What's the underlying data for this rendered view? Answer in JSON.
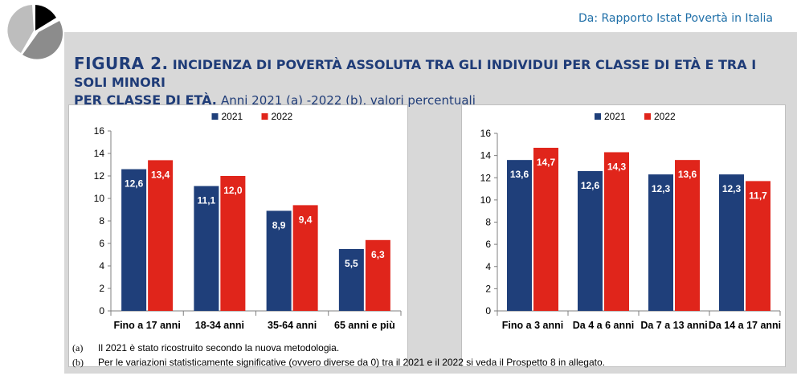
{
  "header": {
    "source": "Da: Rapporto Istat Povertà in Italia",
    "logo_icon": "pie-chart-icon"
  },
  "figure": {
    "label": "FIGURA 2.",
    "title_line1": "INCIDENZA DI POVERTÀ ASSOLUTA TRA  GLI INDIVIDUI PER CLASSE DI ETÀ E TRA I SOLI MINORI",
    "title_line2": "PER CLASSE DI ETÀ.",
    "subtitle": "Anni 2021 (a) -2022 (b), valori percentuali"
  },
  "colors": {
    "series_2021": "#1f3f7a",
    "series_2022": "#e0251b",
    "panel_bg": "#d8d8d8"
  },
  "chart_data": [
    {
      "type": "bar",
      "categories": [
        "Fino a 17 anni",
        "18-34 anni",
        "35-64 anni",
        "65 anni e più"
      ],
      "series": [
        {
          "name": "2021",
          "values": [
            12.6,
            11.1,
            8.9,
            5.5
          ],
          "labels": [
            "12,6",
            "11,1",
            "8,9",
            "5,5"
          ]
        },
        {
          "name": "2022",
          "values": [
            13.4,
            12.0,
            9.4,
            6.3
          ],
          "labels": [
            "13,4",
            "12,0",
            "9,4",
            "6,3"
          ]
        }
      ],
      "ylim": [
        0,
        16
      ],
      "yticks": [
        0,
        2,
        4,
        6,
        8,
        10,
        12,
        14,
        16
      ],
      "legend": "top-center",
      "grid": false
    },
    {
      "type": "bar",
      "categories": [
        "Fino a 3 anni",
        "Da 4 a 6 anni",
        "Da 7 a 13 anni",
        "Da 14 a 17 anni"
      ],
      "series": [
        {
          "name": "2021",
          "values": [
            13.6,
            12.6,
            12.3,
            12.3
          ],
          "labels": [
            "13,6",
            "12,6",
            "12,3",
            "12,3"
          ]
        },
        {
          "name": "2022",
          "values": [
            14.7,
            14.3,
            13.6,
            11.7
          ],
          "labels": [
            "14,7",
            "14,3",
            "13,6",
            "11,7"
          ]
        }
      ],
      "ylim": [
        0,
        16
      ],
      "yticks": [
        0,
        2,
        4,
        6,
        8,
        10,
        12,
        14,
        16
      ],
      "legend": "top-center",
      "grid": false
    }
  ],
  "notes": [
    {
      "key": "(a)",
      "text": "Il 2021 è stato ricostruito secondo la nuova metodologia."
    },
    {
      "key": "(b)",
      "text": "Per le variazioni statisticamente significative (ovvero diverse da 0) tra il 2021 e il 2022 si veda il Prospetto 8 in allegato."
    }
  ]
}
